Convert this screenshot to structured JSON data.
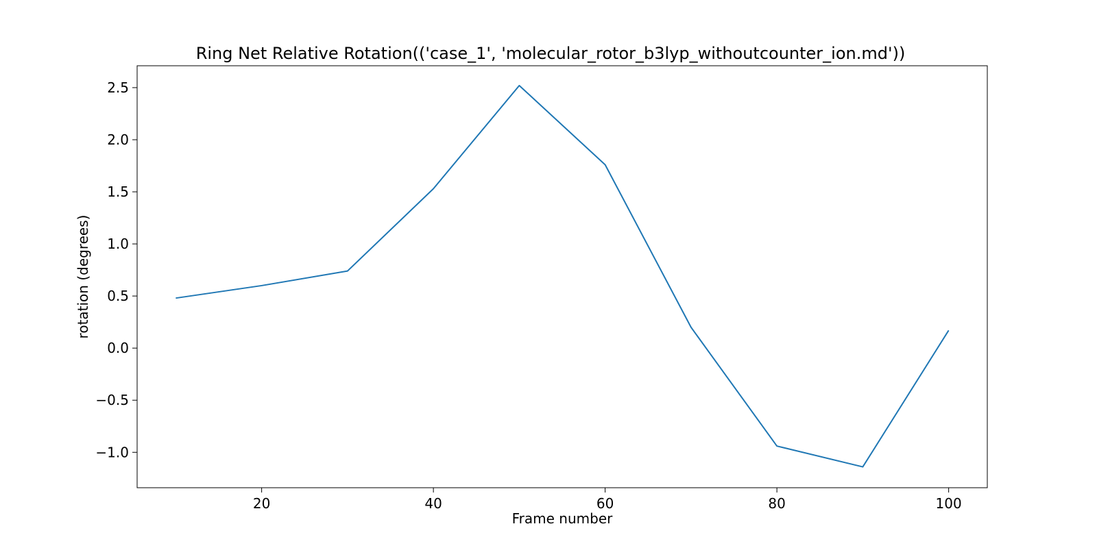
{
  "chart_data": {
    "type": "line",
    "title": "Ring Net Relative Rotation(('case_1', 'molecular_rotor_b3lyp_withoutcounter_ion.md'))",
    "xlabel": "Frame number",
    "ylabel": "rotation (degrees)",
    "xlim": [
      5.5,
      104.5
    ],
    "ylim": [
      -1.34,
      2.71
    ],
    "x_ticks": [
      20,
      40,
      60,
      80,
      100
    ],
    "x_tick_labels": [
      "20",
      "40",
      "60",
      "80",
      "100"
    ],
    "y_ticks": [
      -1.0,
      -0.5,
      0.0,
      0.5,
      1.0,
      1.5,
      2.0,
      2.5
    ],
    "y_tick_labels": [
      "−1.0",
      "−0.5",
      "0.0",
      "0.5",
      "1.0",
      "1.5",
      "2.0",
      "2.5"
    ],
    "grid": false,
    "series": [
      {
        "color": "#1f77b4",
        "x": [
          10,
          20,
          30,
          40,
          50,
          60,
          70,
          80,
          90,
          100
        ],
        "y": [
          0.48,
          0.6,
          0.74,
          1.53,
          2.52,
          1.76,
          0.2,
          -0.94,
          -1.14,
          0.17
        ]
      }
    ]
  }
}
